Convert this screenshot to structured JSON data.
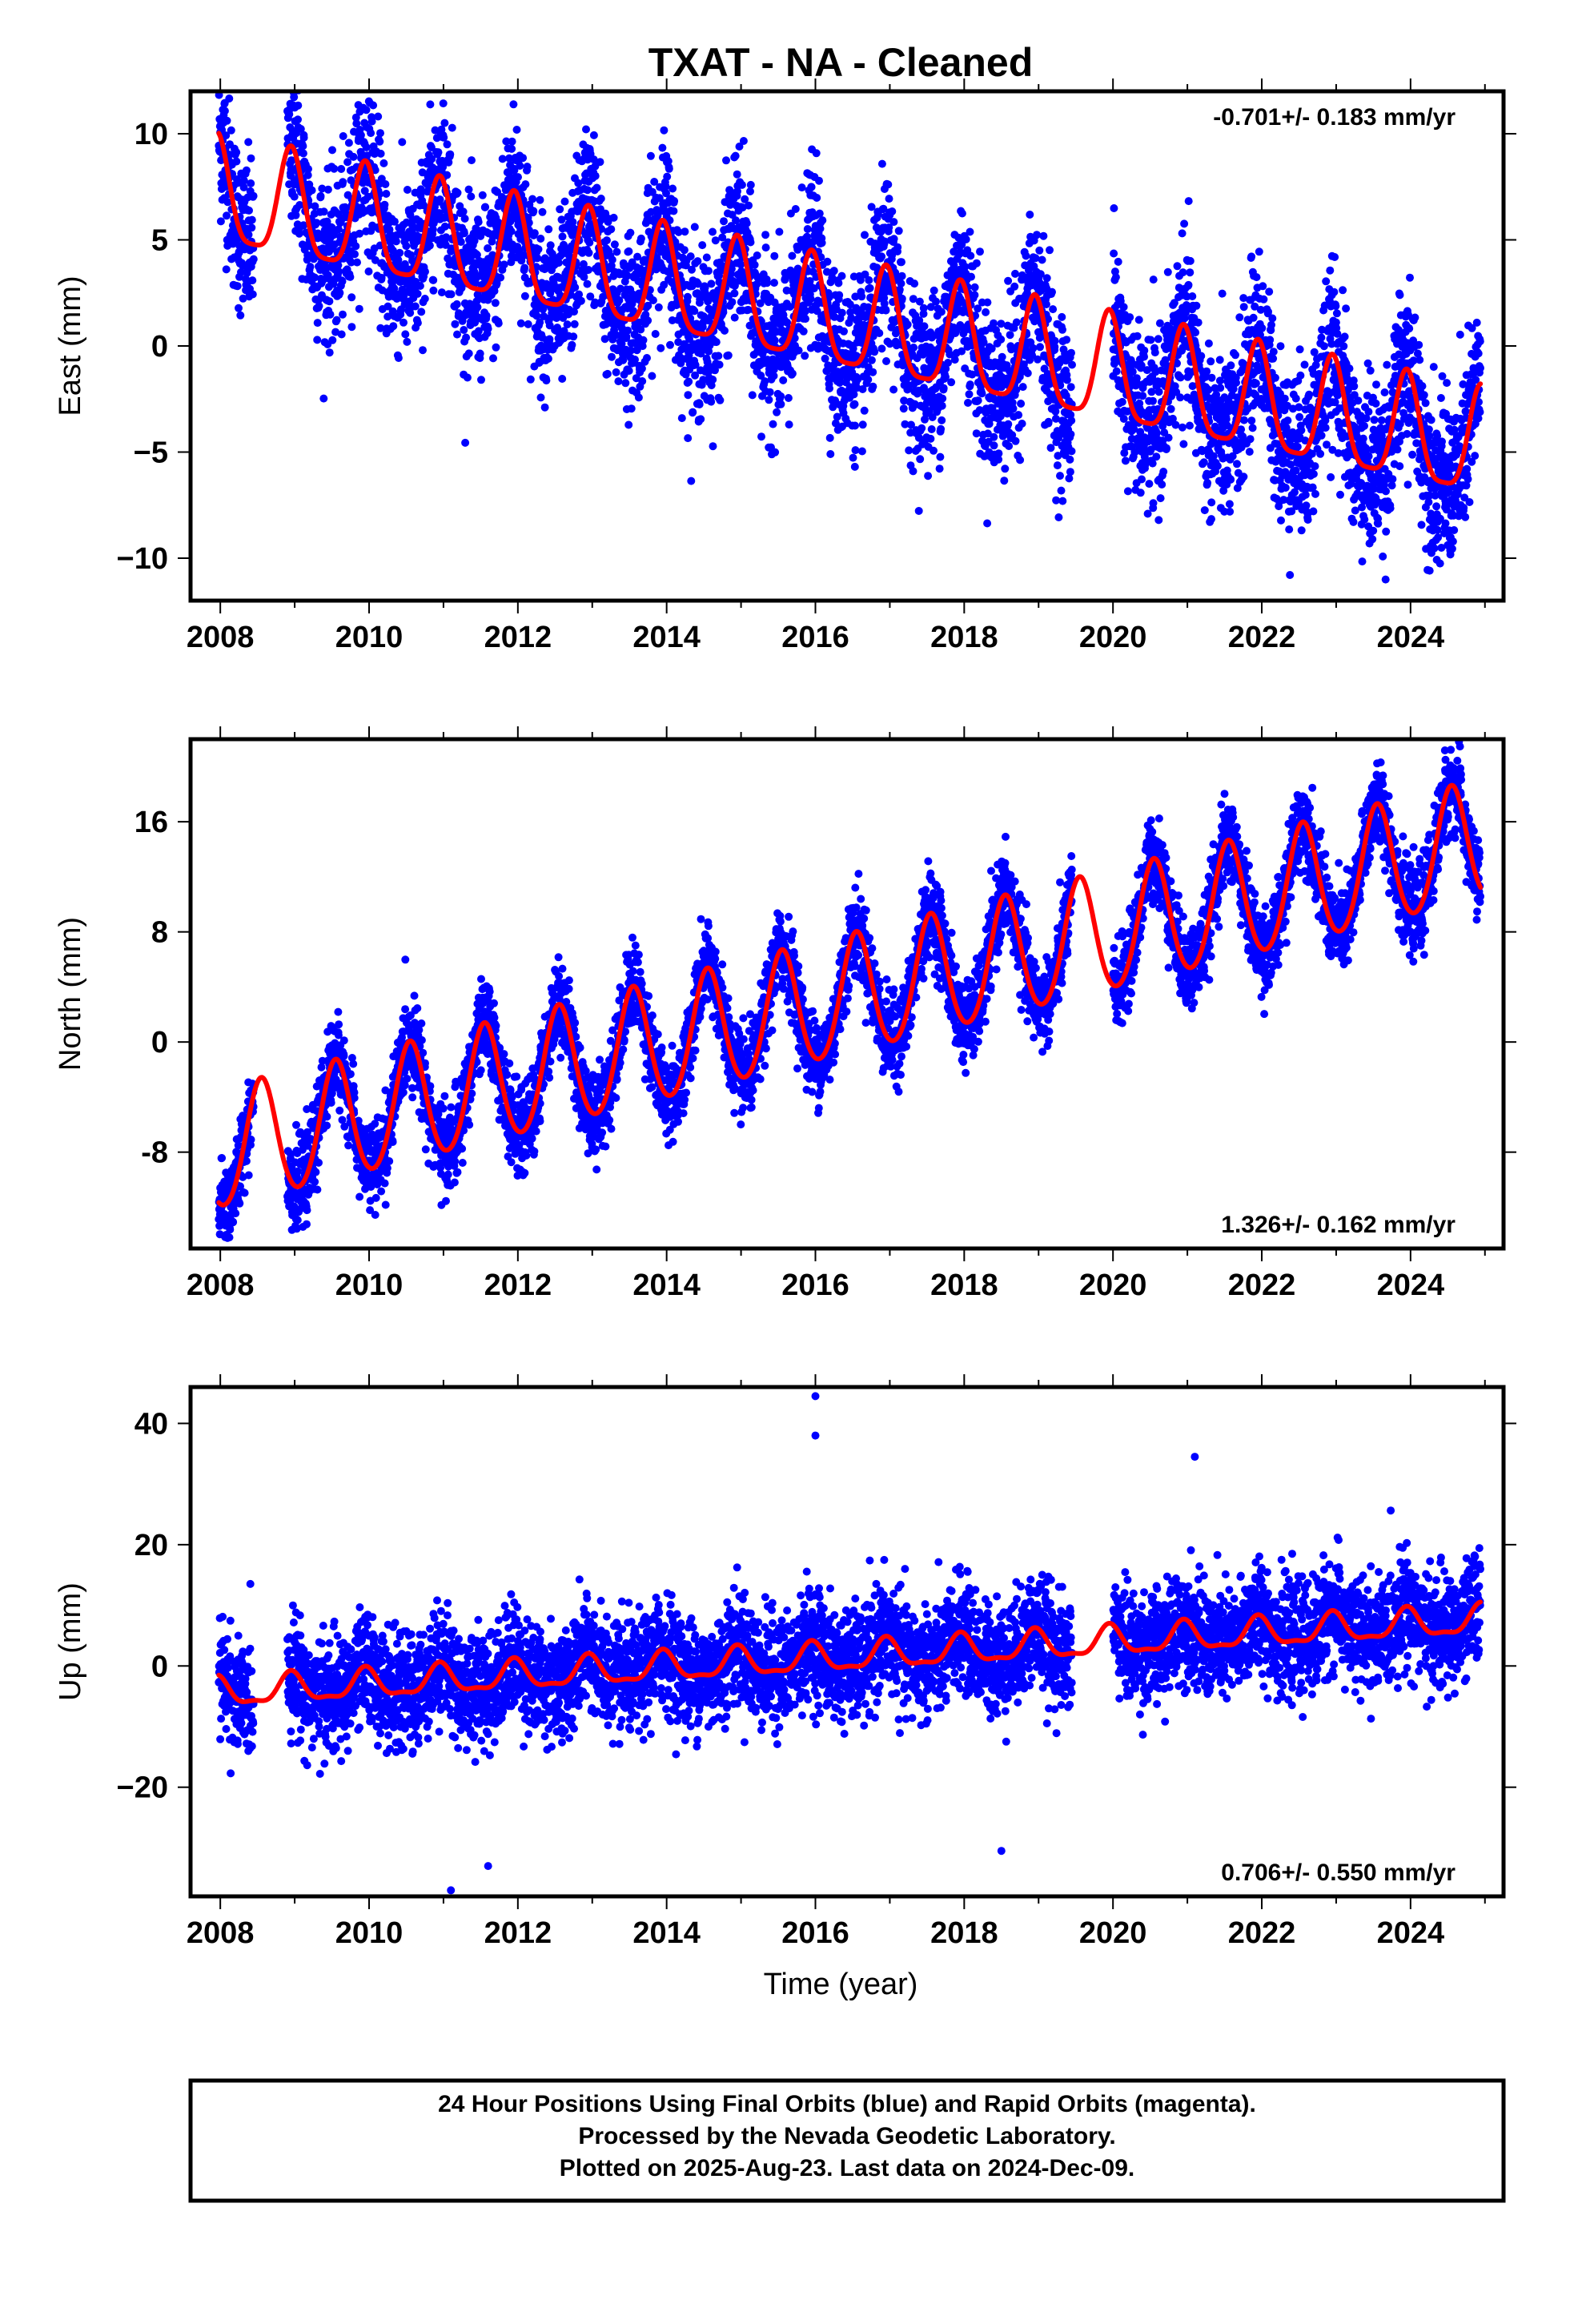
{
  "title": "TXAT  - NA - Cleaned",
  "colors": {
    "final_orbits": "#0000ff",
    "fit": "#ff0000",
    "frame": "#000000"
  },
  "x_axis_label": "Time (year)",
  "footer": {
    "line1": "24 Hour Positions Using Final Orbits (blue) and Rapid Orbits (magenta).",
    "line2": "Processed by the Nevada Geodetic Laboratory.",
    "line3": "Plotted on 2025-Aug-23. Last data on 2024-Dec-09."
  },
  "chart_data": [
    {
      "type": "scatter",
      "component": "East",
      "ylabel": "East (mm)",
      "rate_text": "-0.701+/- 0.183 mm/yr",
      "rate_position": "top-right",
      "xlim": [
        2007.6,
        2025.25
      ],
      "ylim": [
        -12,
        12
      ],
      "x_ticks": [
        2008,
        2010,
        2012,
        2014,
        2016,
        2018,
        2020,
        2022,
        2024
      ],
      "y_ticks": [
        -10,
        -5,
        0,
        5,
        10
      ],
      "y_tick_labels": [
        "−10",
        "−5",
        "0",
        "5",
        "10"
      ],
      "data_start": 2007.98,
      "data_end": 2024.94,
      "gaps": [
        [
          2008.45,
          2008.9
        ],
        [
          2019.45,
          2020.0
        ]
      ],
      "fit": {
        "x0": 2008.0,
        "offset": 7.0,
        "rate": -0.701,
        "annual_amplitude": 2.5,
        "annual_phase_year": 0.95,
        "semiannual_amplitude": 0.6,
        "scatter_sd": 1.9
      },
      "grid": false,
      "legend": "none"
    },
    {
      "type": "scatter",
      "component": "North",
      "ylabel": "North (mm)",
      "rate_text": "1.326+/- 0.162 mm/yr",
      "rate_position": "bottom-right",
      "xlim": [
        2007.6,
        2025.25
      ],
      "ylim": [
        -15,
        22
      ],
      "x_ticks": [
        2008,
        2010,
        2012,
        2014,
        2016,
        2018,
        2020,
        2022,
        2024
      ],
      "y_ticks": [
        -8,
        0,
        8,
        16
      ],
      "y_tick_labels": [
        "-8",
        "0",
        "8",
        "16"
      ],
      "data_start": 2007.98,
      "data_end": 2024.94,
      "gaps": [
        [
          2008.45,
          2008.9
        ],
        [
          2019.45,
          2020.0
        ]
      ],
      "fit": {
        "x0": 2008.0,
        "offset": -8.0,
        "rate": 1.326,
        "annual_amplitude": 4.3,
        "annual_phase_year": 0.55,
        "semiannual_amplitude": 0.4,
        "scatter_sd": 1.5
      },
      "grid": false,
      "legend": "none"
    },
    {
      "type": "scatter",
      "component": "Up",
      "ylabel": "Up (mm)",
      "rate_text": "0.706+/- 0.550 mm/yr",
      "rate_position": "bottom-right",
      "xlim": [
        2007.6,
        2025.25
      ],
      "ylim": [
        -38,
        46
      ],
      "x_ticks": [
        2008,
        2010,
        2012,
        2014,
        2016,
        2018,
        2020,
        2022,
        2024
      ],
      "y_ticks": [
        -20,
        0,
        20,
        40
      ],
      "y_tick_labels": [
        "−20",
        "0",
        "20",
        "40"
      ],
      "data_start": 2007.98,
      "data_end": 2024.94,
      "gaps": [
        [
          2008.45,
          2008.9
        ],
        [
          2019.45,
          2020.0
        ]
      ],
      "fit": {
        "x0": 2008.0,
        "offset": -4.5,
        "rate": 0.706,
        "annual_amplitude": 2.3,
        "annual_phase_year": 0.95,
        "semiannual_amplitude": 0.8,
        "scatter_sd": 4.5
      },
      "outliers": [
        [
          2016.0,
          44.5
        ],
        [
          2016.0,
          38.0
        ],
        [
          2011.1,
          -37.0
        ],
        [
          2021.1,
          34.5
        ],
        [
          2018.5,
          -30.5
        ],
        [
          2011.6,
          -33.0
        ]
      ],
      "grid": false,
      "legend": "none"
    }
  ]
}
